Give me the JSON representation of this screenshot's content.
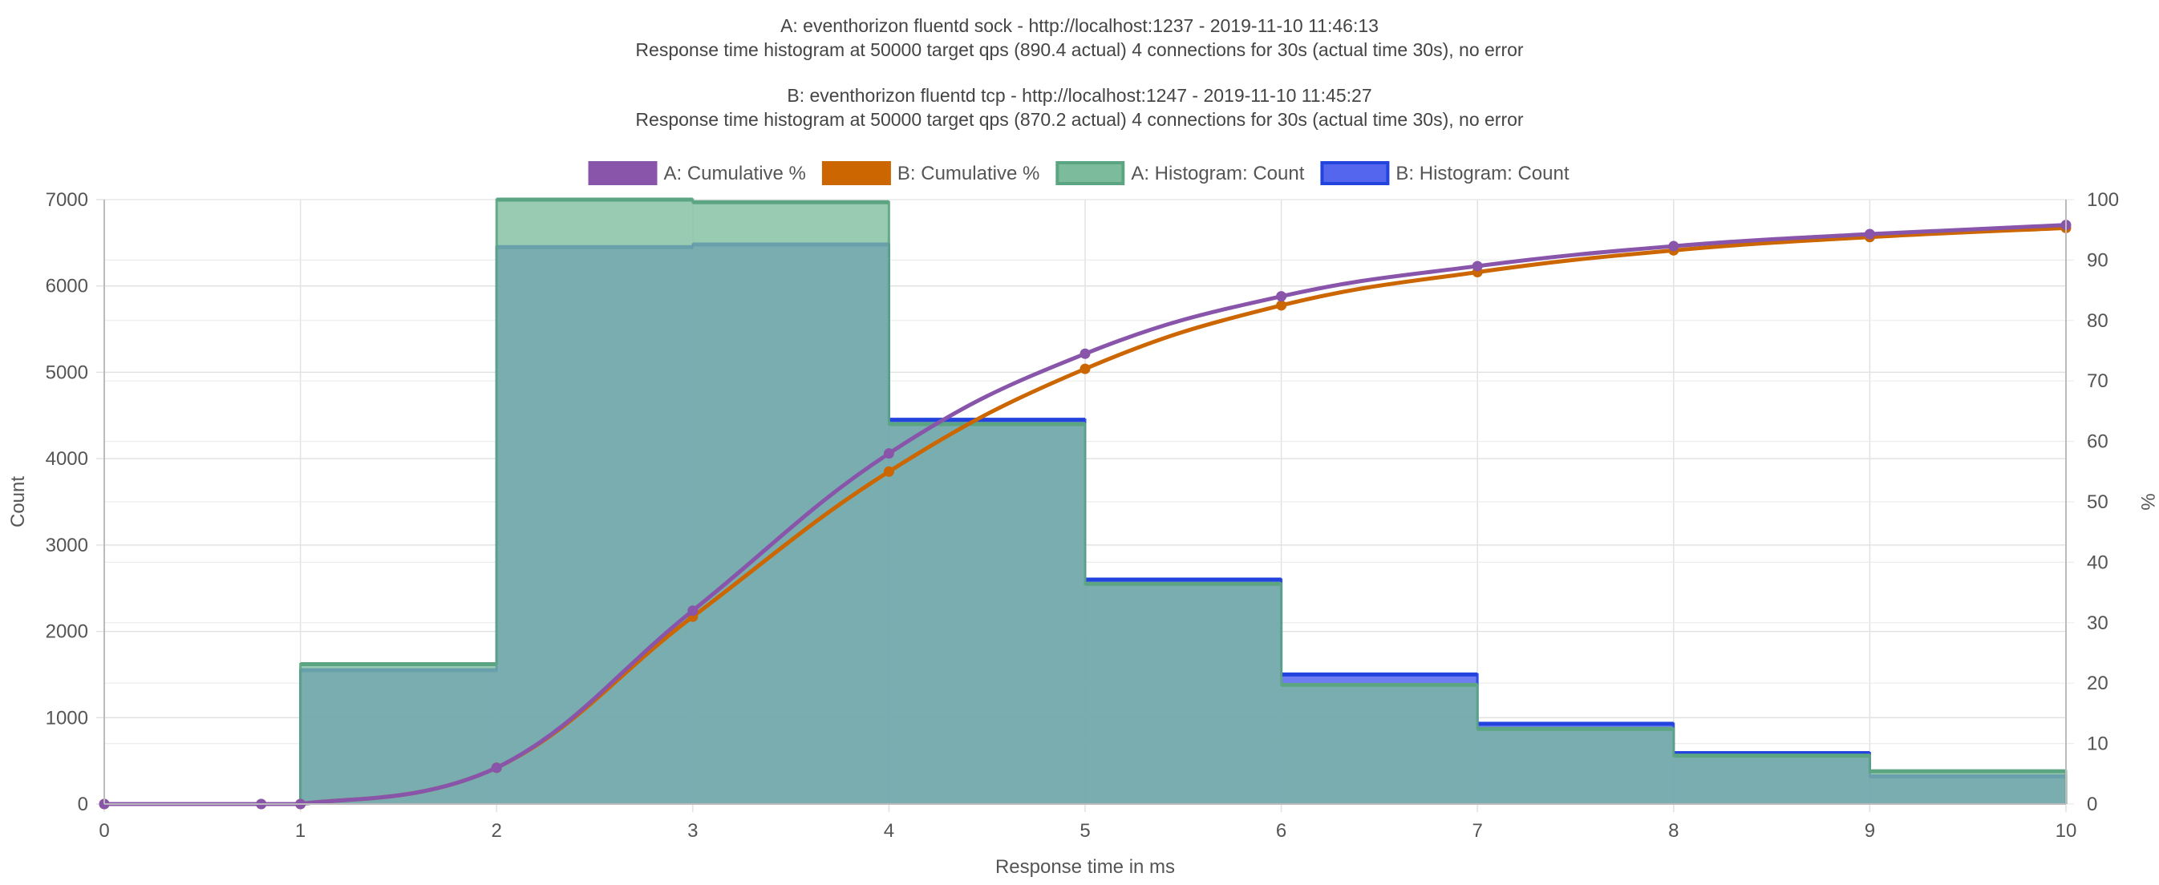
{
  "chart_data": {
    "type": "bar+line",
    "titles": [
      "A: eventhorizon fluentd sock - http://localhost:1237 - 2019-11-10 11:46:13",
      "Response time histogram at 50000 target qps (890.4 actual) 4 connections for 30s (actual time 30s), no error",
      "B: eventhorizon fluentd tcp - http://localhost:1247 - 2019-11-10 11:45:27",
      "Response time histogram at 50000 target qps (870.2 actual) 4 connections for 30s (actual time 30s), no error"
    ],
    "xlabel": "Response time in ms",
    "ylabel_left": "Count",
    "ylabel_right": "%",
    "xlim": [
      0,
      10
    ],
    "ylim_left": [
      0,
      7000
    ],
    "ylim_right": [
      0,
      100
    ],
    "x_ticks": [
      "0",
      "1",
      "2",
      "3",
      "4",
      "5",
      "6",
      "7",
      "8",
      "9",
      "10"
    ],
    "y_left_ticks": [
      "0",
      "1000",
      "2000",
      "3000",
      "4000",
      "5000",
      "6000",
      "7000"
    ],
    "y_right_ticks": [
      "0",
      "10",
      "20",
      "30",
      "40",
      "50",
      "60",
      "70",
      "80",
      "90",
      "100"
    ],
    "grid": true,
    "legend_position": "top-center",
    "legend": [
      {
        "label": "A: Cumulative %",
        "color": "#8855aa",
        "fill": "#8855aa"
      },
      {
        "label": "B: Cumulative %",
        "color": "#cc6600",
        "fill": "#cc6600"
      },
      {
        "label": "A: Histogram: Count",
        "color": "#5ca582",
        "fill": "#7cbb9c"
      },
      {
        "label": "B: Histogram: Count",
        "color": "#2244dd",
        "fill": "#5566ee"
      }
    ],
    "histogram_bins": [
      [
        1,
        2
      ],
      [
        2,
        3
      ],
      [
        3,
        4
      ],
      [
        4,
        5
      ],
      [
        5,
        6
      ],
      [
        6,
        7
      ],
      [
        7,
        8
      ],
      [
        8,
        9
      ],
      [
        9,
        10
      ]
    ],
    "series": [
      {
        "name": "A: Histogram: Count",
        "kind": "histogram",
        "values": [
          1620,
          7000,
          6970,
          4400,
          2550,
          1380,
          870,
          560,
          380
        ]
      },
      {
        "name": "B: Histogram: Count",
        "kind": "histogram",
        "values": [
          1550,
          6450,
          6480,
          4450,
          2600,
          1500,
          930,
          590,
          320
        ]
      },
      {
        "name": "A: Cumulative %",
        "kind": "line",
        "x": [
          0,
          0.8,
          1,
          2,
          3,
          4,
          5,
          6,
          7,
          8,
          9,
          10
        ],
        "y": [
          0,
          0,
          0,
          6,
          32,
          58,
          74.5,
          84,
          89,
          92.3,
          94.3,
          95.8
        ]
      },
      {
        "name": "B: Cumulative %",
        "kind": "line",
        "x": [
          0,
          0.8,
          1,
          2,
          3,
          4,
          5,
          6,
          7,
          8,
          9,
          10
        ],
        "y": [
          0,
          0,
          0,
          6,
          31,
          55,
          72,
          82.5,
          88,
          91.6,
          93.8,
          95.3
        ]
      }
    ]
  }
}
